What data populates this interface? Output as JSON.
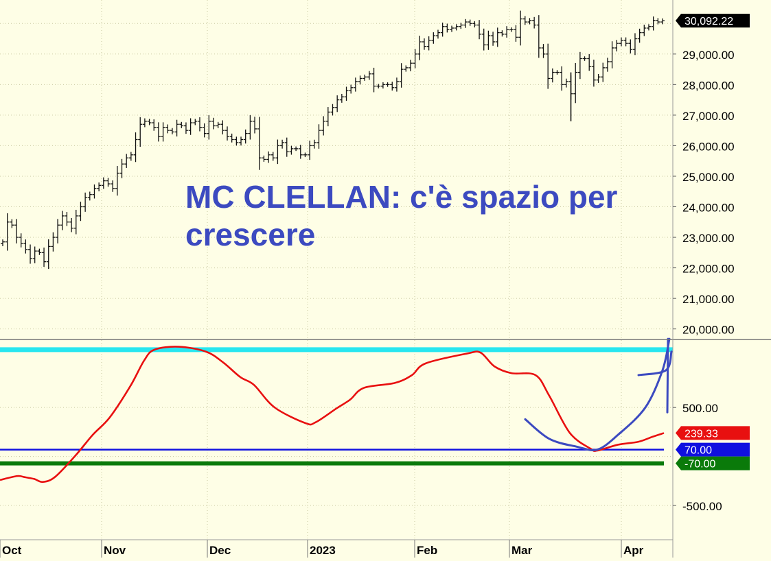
{
  "colors": {
    "background": "#fefee6",
    "grid": "#c8c8a0",
    "bars": "#111111",
    "oscillator": "#e81010",
    "annotation": "#3c4ac0",
    "cyan_line": "#27e6ef",
    "blue_line": "#1010e0",
    "green_line": "#0a7a0a"
  },
  "annotation": {
    "line1": "MC CLELLAN: c'è spazio per",
    "line2": "crescere"
  },
  "chart_data": [
    {
      "type": "ohlc",
      "name": "price",
      "ylim": [
        19700,
        30500
      ],
      "ytick_values": [
        20000,
        21000,
        22000,
        23000,
        24000,
        25000,
        26000,
        27000,
        28000,
        29000
      ],
      "ytick_labels": [
        "20,000.00",
        "21,000.00",
        "22,000.00",
        "23,000.00",
        "24,000.00",
        "25,000.00",
        "26,000.00",
        "27,000.00",
        "28,000.00",
        "29,000.00"
      ],
      "last_value": 30092.22,
      "last_label": "30,092.22",
      "grid": true,
      "close": [
        22850,
        23500,
        23400,
        23000,
        22800,
        22600,
        22300,
        22550,
        22500,
        22200,
        22700,
        23000,
        23400,
        23700,
        23500,
        23300,
        23700,
        24000,
        24300,
        24400,
        24600,
        24700,
        24850,
        24750,
        24600,
        25100,
        25400,
        25600,
        25700,
        26200,
        26700,
        26800,
        26750,
        26600,
        26300,
        26600,
        26500,
        26450,
        26700,
        26650,
        26500,
        26750,
        26800,
        26600,
        26400,
        26800,
        26650,
        26700,
        26500,
        26300,
        26200,
        26100,
        26200,
        26400,
        26800,
        26550,
        25600,
        25550,
        25700,
        25600,
        26000,
        26100,
        25800,
        25900,
        25900,
        25700,
        25700,
        26000,
        26100,
        26500,
        26800,
        27100,
        27250,
        27500,
        27600,
        27800,
        27900,
        28100,
        28200,
        28250,
        28350,
        27950,
        27950,
        28000,
        28000,
        27900,
        28100,
        28500,
        28550,
        28700,
        29000,
        29400,
        29250,
        29450,
        29600,
        29700,
        29900,
        29800,
        29850,
        29900,
        29950,
        30050,
        30000,
        29950,
        29650,
        29300,
        29600,
        29400,
        29700,
        29650,
        29800,
        29800,
        29550,
        30150,
        30050,
        30100,
        29950,
        29200,
        29000,
        28200,
        28400,
        28400,
        28000,
        28100,
        27700,
        28400,
        28850,
        28850,
        28600,
        28150,
        28250,
        28550,
        28750,
        29200,
        29350,
        29450,
        29350,
        29150,
        29500,
        29700,
        29850,
        29900,
        30100,
        30050,
        30092
      ],
      "xticks": [
        "Oct",
        "Nov",
        "Dec",
        "2023",
        "Feb",
        "Mar",
        "Apr"
      ]
    },
    {
      "type": "line",
      "name": "McClellan Oscillator",
      "ylim": [
        -850,
        1180
      ],
      "ytick_values": [
        500,
        -500
      ],
      "ytick_labels": [
        "500.00",
        "-500.00"
      ],
      "x": [
        0,
        25,
        35,
        50,
        62,
        80,
        110,
        135,
        160,
        190,
        210,
        225,
        260,
        300,
        325,
        350,
        370,
        400,
        445,
        460,
        490,
        510,
        530,
        575,
        600,
        620,
        680,
        700,
        720,
        745,
        780,
        800,
        830,
        860,
        870,
        900,
        930,
        950,
        967
      ],
      "y": [
        -240,
        -200,
        -210,
        -230,
        -260,
        -210,
        10,
        220,
        400,
        720,
        980,
        1090,
        1120,
        1070,
        960,
        810,
        730,
        500,
        340,
        350,
        490,
        580,
        700,
        750,
        830,
        950,
        1050,
        1060,
        920,
        850,
        830,
        620,
        240,
        80,
        60,
        120,
        150,
        200,
        239
      ],
      "cyan_level": 1090,
      "levels": [
        {
          "value": 239.33,
          "label": "239.33",
          "color": "#e81010"
        },
        {
          "value": 70,
          "label": "70.00",
          "color": "#1010e0"
        },
        {
          "value": -70,
          "label": "-70.00",
          "color": "#0a7a0a"
        }
      ],
      "hand_curve_x": [
        765,
        800,
        840,
        870,
        900,
        940,
        965,
        975
      ],
      "hand_curve_y": [
        380,
        180,
        100,
        70,
        220,
        500,
        880,
        1200
      ],
      "hand_stroke_x": [
        930,
        970,
        978
      ],
      "hand_stroke_y": [
        830,
        880,
        1070
      ],
      "grid": true
    }
  ]
}
